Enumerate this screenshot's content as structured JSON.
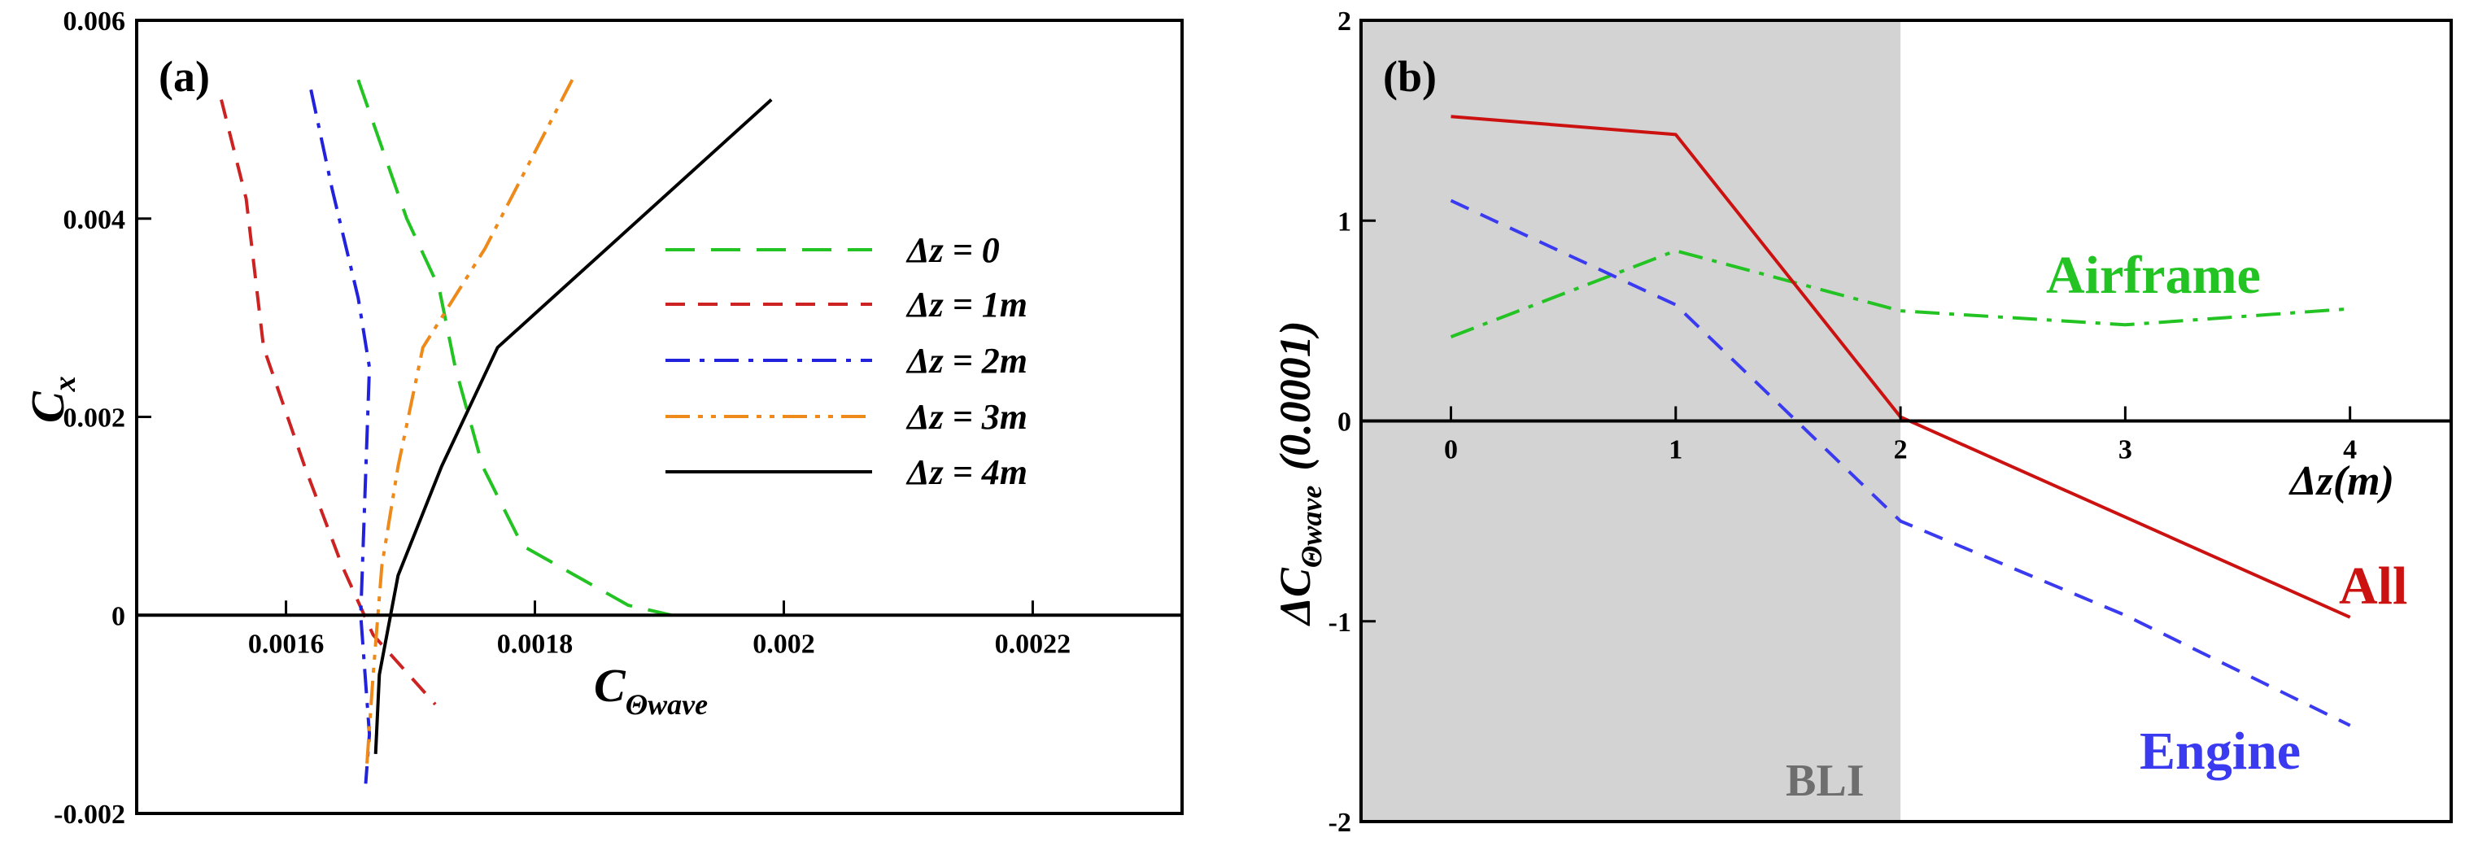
{
  "chart_data": [
    {
      "panel_label": "(a)",
      "type": "line",
      "xlabel": "C",
      "xlabel_sub": "Θwave",
      "ylabel": "C",
      "ylabel_sub": "x",
      "xlim": [
        0.00148,
        0.00232
      ],
      "ylim": [
        -0.002,
        0.006
      ],
      "x_ticks": [
        0.0016,
        0.0018,
        0.002,
        0.0022
      ],
      "x_tick_labels": [
        "0.0016",
        "0.0018",
        "0.002",
        "0.0022"
      ],
      "y_ticks": [
        -0.002,
        0,
        0.002,
        0.004,
        0.006
      ],
      "y_tick_labels": [
        "-0.002",
        "0",
        "0.002",
        "0.004",
        "0.006"
      ],
      "legend_position": "right",
      "series": [
        {
          "name": "Δz = 0",
          "color": "#22c322",
          "dash": "long-dash",
          "x": [
            0.001658,
            0.001697,
            0.001723,
            0.001736,
            0.001758,
            0.00179,
            0.001875,
            0.00191
          ],
          "y": [
            0.0054,
            0.004,
            0.0033,
            0.0025,
            0.0015,
            0.0007,
            0.0001,
            0.0
          ]
        },
        {
          "name": "Δz = 1m",
          "color": "#cc2222",
          "dash": "dash",
          "x": [
            0.001548,
            0.001568,
            0.001582,
            0.001615,
            0.001645,
            0.00167,
            0.00172
          ],
          "y": [
            0.0052,
            0.0042,
            0.0027,
            0.0015,
            0.0005,
            -0.0002,
            -0.0009
          ]
        },
        {
          "name": "Δz = 2m",
          "color": "#2222dd",
          "dash": "dash-dot",
          "x": [
            0.00162,
            0.001637,
            0.001658,
            0.001667,
            0.00166,
            0.001667,
            0.001664
          ],
          "y": [
            0.0053,
            0.0043,
            0.0032,
            0.0025,
            0.0,
            -0.0012,
            -0.0017
          ]
        },
        {
          "name": "Δz = 3m",
          "color": "#ee8a1a",
          "dash": "dash-dot-dot",
          "x": [
            0.00183,
            0.00176,
            0.00171,
            0.00169,
            0.001677,
            0.00167,
            0.001665
          ],
          "y": [
            0.0054,
            0.0037,
            0.0027,
            0.0015,
            0.0005,
            -0.0006,
            -0.0015
          ]
        },
        {
          "name": "Δz = 4m",
          "color": "#000000",
          "dash": "solid",
          "x": [
            0.00199,
            0.00177,
            0.001725,
            0.00169,
            0.001675,
            0.001672
          ],
          "y": [
            0.0052,
            0.0027,
            0.0015,
            0.0004,
            -0.0006,
            -0.0014
          ]
        }
      ]
    },
    {
      "panel_label": "(b)",
      "type": "line",
      "xlabel": "Δz(m)",
      "ylabel": "ΔC",
      "ylabel_sub": "Θwave",
      "ylabel_suffix": "(0.0001)",
      "xlim": [
        -0.4,
        4.45
      ],
      "ylim": [
        -2,
        2
      ],
      "x_ticks": [
        0,
        1,
        2,
        3,
        4
      ],
      "x_tick_labels": [
        "0",
        "1",
        "2",
        "3",
        "4"
      ],
      "y_ticks": [
        -2,
        -1,
        0,
        1,
        2
      ],
      "y_tick_labels": [
        "-2",
        "-1",
        "0",
        "1",
        "2"
      ],
      "shaded_region": {
        "x_from": -0.4,
        "x_to": 2,
        "label": "BLI",
        "color": "#d3d3d3"
      },
      "series": [
        {
          "name": "Airframe",
          "color": "#22c322",
          "dash": "dash-dot",
          "x": [
            0,
            1,
            2,
            3,
            4
          ],
          "y": [
            0.42,
            0.85,
            0.55,
            0.48,
            0.56
          ]
        },
        {
          "name": "All",
          "color": "#cc1111",
          "dash": "solid",
          "x": [
            0,
            1,
            2,
            3,
            4
          ],
          "y": [
            1.52,
            1.43,
            0.02,
            -0.48,
            -0.98
          ]
        },
        {
          "name": "Engine",
          "color": "#3a3af0",
          "dash": "dash",
          "x": [
            0,
            1,
            2,
            3,
            4
          ],
          "y": [
            1.1,
            0.58,
            -0.5,
            -0.97,
            -1.52
          ]
        }
      ]
    }
  ]
}
